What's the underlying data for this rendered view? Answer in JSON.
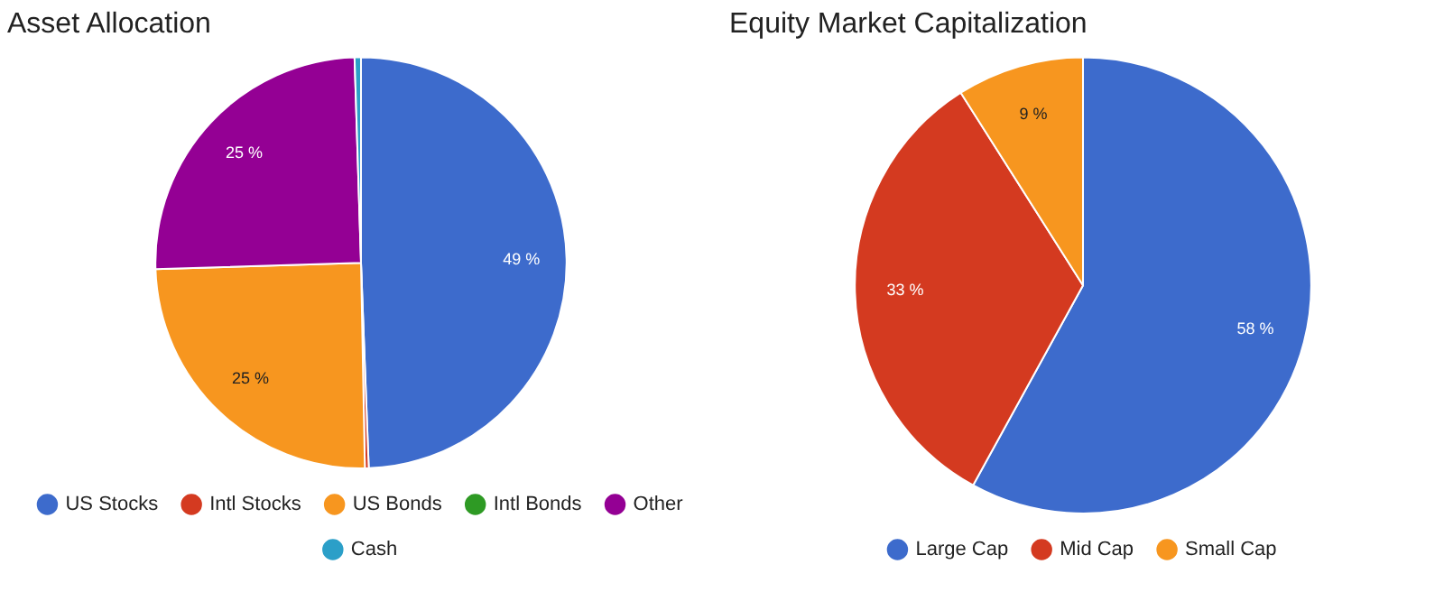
{
  "chart_data": [
    {
      "type": "pie",
      "title": "Asset Allocation",
      "categories": [
        "US Stocks",
        "Intl Stocks",
        "US Bonds",
        "Intl Bonds",
        "Other",
        "Cash"
      ],
      "values": [
        49.4,
        0.3,
        24.8,
        0,
        25,
        0.5
      ],
      "colors": [
        "#3d6bcc",
        "#d43a20",
        "#f7961f",
        "#2e9a24",
        "#940094",
        "#2b9fc8"
      ],
      "value_labels": [
        "49 %",
        null,
        "25 %",
        null,
        "25 %",
        null
      ],
      "legend": "bottom"
    },
    {
      "type": "pie",
      "title": "Equity Market Capitalization",
      "categories": [
        "Large Cap",
        "Mid Cap",
        "Small Cap"
      ],
      "values": [
        58,
        33,
        9
      ],
      "colors": [
        "#3d6bcc",
        "#d43a20",
        "#f7961f"
      ],
      "value_labels": [
        "58 %",
        "33 %",
        "9 %"
      ],
      "legend": "bottom"
    }
  ]
}
